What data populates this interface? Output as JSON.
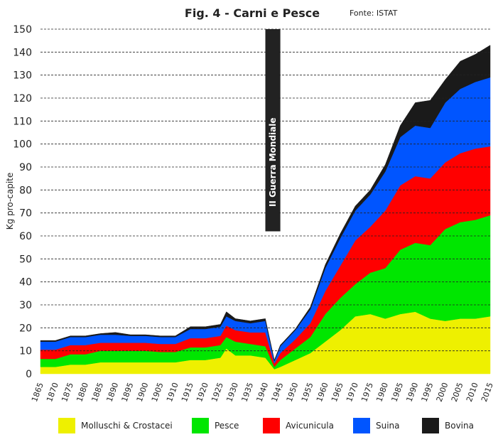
{
  "chart_data": {
    "type": "area",
    "stacked": true,
    "title": "Fig. 4 - Carni e Pesce",
    "source": "Fonte: ISTAT",
    "ylabel": "Kg pro-capite",
    "xlabel": "",
    "ylim": [
      0,
      150
    ],
    "xlim": [
      1865,
      2015
    ],
    "yticks": [
      "0",
      "10",
      "20",
      "30",
      "40",
      "50",
      "60",
      "70",
      "80",
      "90",
      "100",
      "110",
      "120",
      "130",
      "140",
      "150"
    ],
    "xticks": [
      "1865",
      "1870",
      "1875",
      "1880",
      "1885",
      "1890",
      "1895",
      "1900",
      "1905",
      "1910",
      "1915",
      "1920",
      "1925",
      "1930",
      "1935",
      "1940",
      "1945",
      "1950",
      "1955",
      "1960",
      "1965",
      "1970",
      "1975",
      "1980",
      "1985",
      "1990",
      "1995",
      "2000",
      "2005",
      "2010",
      "2015"
    ],
    "grid": "horizontal-dashed",
    "annotation": {
      "label": "II Guerra Mondiale",
      "from": 1940,
      "to": 1945,
      "y_from": 62,
      "y_to": 150
    },
    "x": [
      1865,
      1870,
      1875,
      1880,
      1885,
      1890,
      1895,
      1900,
      1905,
      1910,
      1915,
      1920,
      1925,
      1927,
      1930,
      1935,
      1940,
      1943,
      1945,
      1950,
      1955,
      1960,
      1965,
      1970,
      1975,
      1980,
      1985,
      1990,
      1995,
      2000,
      2005,
      2010,
      2015
    ],
    "series": [
      {
        "name": "Molluschi & Crostacei",
        "color": "#eef000",
        "values": [
          3,
          3,
          4,
          4,
          5,
          5,
          5,
          5,
          5,
          5,
          6,
          6,
          7,
          11,
          8,
          8,
          7,
          2,
          3,
          6,
          9,
          14,
          19,
          25,
          26,
          24,
          26,
          27,
          24,
          23,
          24,
          24,
          25
        ]
      },
      {
        "name": "Pesce",
        "color": "#00e600",
        "values": [
          3.5,
          3.5,
          4.5,
          4.5,
          5,
          5,
          5,
          5,
          4.5,
          4.5,
          5.5,
          5.5,
          5.5,
          5,
          6,
          5,
          5,
          1,
          3,
          5,
          7,
          12,
          14,
          14,
          18,
          22,
          28,
          30,
          32,
          40,
          42,
          43,
          44
        ]
      },
      {
        "name": "Avicunicula",
        "color": "#ff0000",
        "values": [
          4,
          4,
          4,
          4,
          3.5,
          3.5,
          3.5,
          3.5,
          3.5,
          3.5,
          4,
          4,
          4,
          5,
          5,
          5,
          6,
          1.5,
          3,
          4,
          6,
          10,
          14,
          19,
          20,
          25,
          28,
          29,
          29,
          29,
          30,
          31,
          30
        ]
      },
      {
        "name": "Suina",
        "color": "#0055ff",
        "values": [
          3.5,
          3.5,
          3.5,
          3.5,
          3.5,
          3.5,
          3,
          3,
          3,
          3,
          4,
          4,
          4,
          4,
          4,
          4,
          5,
          1,
          3,
          4,
          6,
          10,
          12,
          13,
          14,
          17,
          21,
          22,
          22,
          26,
          28,
          29,
          30
        ]
      },
      {
        "name": "Bovina",
        "color": "#1a1a1a",
        "values": [
          0.5,
          0.5,
          0.5,
          0.5,
          0.5,
          1,
          0.5,
          0.5,
          0.5,
          0.5,
          1,
          1,
          1,
          2,
          1,
          1,
          1,
          0.5,
          0.5,
          0.5,
          1,
          1.5,
          2,
          2,
          2,
          3,
          5,
          10,
          12,
          10,
          12,
          12,
          14
        ]
      }
    ]
  }
}
